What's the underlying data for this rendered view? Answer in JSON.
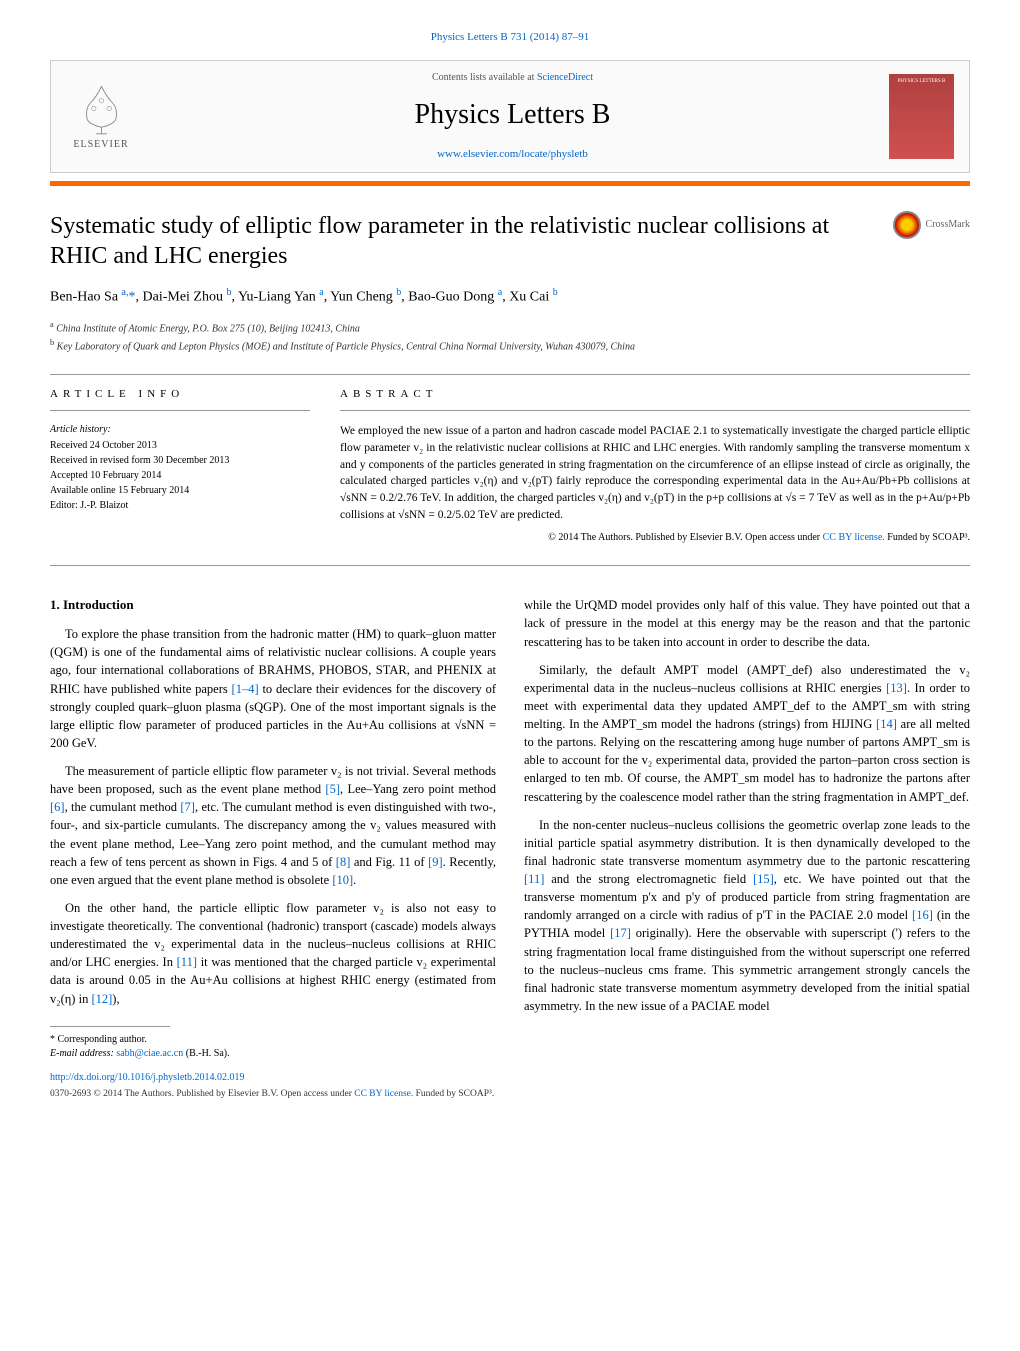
{
  "top_link": "Physics Letters B 731 (2014) 87–91",
  "header": {
    "contents_prefix": "Contents lists available at ",
    "contents_link": "ScienceDirect",
    "journal": "Physics Letters B",
    "journal_url": "www.elsevier.com/locate/physletb",
    "publisher": "ELSEVIER",
    "cover_text": "PHYSICS LETTERS B"
  },
  "crossmark": "CrossMark",
  "title": "Systematic study of elliptic flow parameter in the relativistic nuclear collisions at RHIC and LHC energies",
  "authors_html": "Ben-Hao Sa <sup>a,</sup><span class='star'>*</span>, Dai-Mei Zhou <sup class='author-link'>b</sup>, Yu-Liang Yan <sup>a</sup>, Yun Cheng <sup class='author-link'>b</sup>, Bao-Guo Dong <sup>a</sup>, Xu Cai <sup class='author-link'>b</sup>",
  "affiliations": [
    "a China Institute of Atomic Energy, P.O. Box 275 (10), Beijing 102413, China",
    "b Key Laboratory of Quark and Lepton Physics (MOE) and Institute of Particle Physics, Central China Normal University, Wuhan 430079, China"
  ],
  "info": {
    "heading": "ARTICLE INFO",
    "history_label": "Article history:",
    "items": [
      "Received 24 October 2013",
      "Received in revised form 30 December 2013",
      "Accepted 10 February 2014",
      "Available online 15 February 2014",
      "Editor: J.-P. Blaizot"
    ]
  },
  "abstract": {
    "heading": "ABSTRACT",
    "text": "We employed the new issue of a parton and hadron cascade model PACIAE 2.1 to systematically investigate the charged particle elliptic flow parameter v₂ in the relativistic nuclear collisions at RHIC and LHC energies. With randomly sampling the transverse momentum x and y components of the particles generated in string fragmentation on the circumference of an ellipse instead of circle as originally, the calculated charged particles v₂(η) and v₂(pT) fairly reproduce the corresponding experimental data in the Au+Au/Pb+Pb collisions at √sNN = 0.2/2.76 TeV. In addition, the charged particles v₂(η) and v₂(pT) in the p+p collisions at √s = 7 TeV as well as in the p+Au/p+Pb collisions at √sNN = 0.2/5.02 TeV are predicted.",
    "copyright": "© 2014 The Authors. Published by Elsevier B.V. Open access under ",
    "license": "CC BY license.",
    "funded": " Funded by SCOAP³."
  },
  "body": {
    "section_heading": "1. Introduction",
    "left_paragraphs": [
      "To explore the phase transition from the hadronic matter (HM) to quark–gluon matter (QGM) is one of the fundamental aims of relativistic nuclear collisions. A couple years ago, four international collaborations of BRAHMS, PHOBOS, STAR, and PHENIX at RHIC have published white papers <span class='ref-link'>[1–4]</span> to declare their evidences for the discovery of strongly coupled quark–gluon plasma (sQGP). One of the most important signals is the large elliptic flow parameter of produced particles in the Au+Au collisions at √sNN = 200 GeV.",
      "The measurement of particle elliptic flow parameter v₂ is not trivial. Several methods have been proposed, such as the event plane method <span class='ref-link'>[5]</span>, Lee–Yang zero point method <span class='ref-link'>[6]</span>, the cumulant method <span class='ref-link'>[7]</span>, etc. The cumulant method is even distinguished with two-, four-, and six-particle cumulants. The discrepancy among the v₂ values measured with the event plane method, Lee–Yang zero point method, and the cumulant method may reach a few of tens percent as shown in Figs. 4 and 5 of <span class='ref-link'>[8]</span> and Fig. 11 of <span class='ref-link'>[9]</span>. Recently, one even argued that the event plane method is obsolete <span class='ref-link'>[10]</span>.",
      "On the other hand, the particle elliptic flow parameter v₂ is also not easy to investigate theoretically. The conventional (hadronic) transport (cascade) models always underestimated the v₂ experimental data in the nucleus–nucleus collisions at RHIC and/or LHC energies. In <span class='ref-link'>[11]</span> it was mentioned that the charged particle v₂ experimental data is around 0.05 in the Au+Au collisions at highest RHIC energy (estimated from v₂(η) in <span class='ref-link'>[12]</span>),"
    ],
    "right_paragraphs": [
      "while the UrQMD model provides only half of this value. They have pointed out that a lack of pressure in the model at this energy may be the reason and that the partonic rescattering has to be taken into account in order to describe the data.",
      "Similarly, the default AMPT model (AMPT_def) also underestimated the v₂ experimental data in the nucleus–nucleus collisions at RHIC energies <span class='ref-link'>[13]</span>. In order to meet with experimental data they updated AMPT_def to the AMPT_sm with string melting. In the AMPT_sm model the hadrons (strings) from HIJING <span class='ref-link'>[14]</span> are all melted to the partons. Relying on the rescattering among huge number of partons AMPT_sm is able to account for the v₂ experimental data, provided the parton–parton cross section is enlarged to ten mb. Of course, the AMPT_sm model has to hadronize the partons after rescattering by the coalescence model rather than the string fragmentation in AMPT_def.",
      "In the non-center nucleus–nucleus collisions the geometric overlap zone leads to the initial particle spatial asymmetry distribution. It is then dynamically developed to the final hadronic state transverse momentum asymmetry due to the partonic rescattering <span class='ref-link'>[11]</span> and the strong electromagnetic field <span class='ref-link'>[15]</span>, etc. We have pointed out that the transverse momentum p'x and p'y of produced particle from string fragmentation are randomly arranged on a circle with radius of p'T in the PACIAE 2.0 model <span class='ref-link'>[16]</span> (in the PYTHIA model <span class='ref-link'>[17]</span> originally). Here the observable with superscript (') refers to the string fragmentation local frame distinguished from the without superscript one referred to the nucleus–nucleus cms frame. This symmetric arrangement strongly cancels the final hadronic state transverse momentum asymmetry developed from the initial spatial asymmetry. In the new issue of a PACIAE model"
    ]
  },
  "footnote": {
    "corresponding": "* Corresponding author.",
    "email_label": "E-mail address: ",
    "email": "sabh@ciae.ac.cn",
    "email_name": " (B.-H. Sa)."
  },
  "doi": "http://dx.doi.org/10.1016/j.physletb.2014.02.019",
  "issn": "0370-2693 © 2014 The Authors. Published by Elsevier B.V. Open access under ",
  "issn_license": "CC BY license.",
  "issn_funded": " Funded by SCOAP³.",
  "colors": {
    "link": "#0066cc",
    "orange": "#ff6600",
    "cover_top": "#b04040",
    "cover_bottom": "#d05050"
  }
}
